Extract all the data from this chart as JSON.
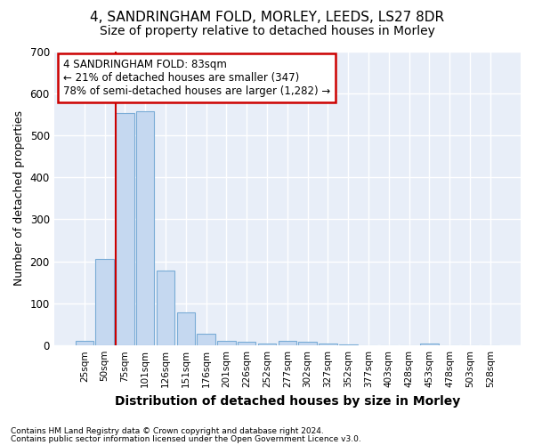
{
  "title": "4, SANDRINGHAM FOLD, MORLEY, LEEDS, LS27 8DR",
  "subtitle": "Size of property relative to detached houses in Morley",
  "xlabel": "Distribution of detached houses by size in Morley",
  "ylabel": "Number of detached properties",
  "categories": [
    "25sqm",
    "50sqm",
    "75sqm",
    "101sqm",
    "126sqm",
    "151sqm",
    "176sqm",
    "201sqm",
    "226sqm",
    "252sqm",
    "277sqm",
    "302sqm",
    "327sqm",
    "352sqm",
    "377sqm",
    "403sqm",
    "428sqm",
    "453sqm",
    "478sqm",
    "503sqm",
    "528sqm"
  ],
  "values": [
    10,
    205,
    553,
    557,
    178,
    78,
    28,
    10,
    8,
    5,
    10,
    8,
    5,
    3,
    0,
    0,
    0,
    5,
    0,
    0,
    0
  ],
  "bar_color": "#c5d8f0",
  "bar_edgecolor": "#7aacd6",
  "annotation_text": "4 SANDRINGHAM FOLD: 83sqm\n← 21% of detached houses are smaller (347)\n78% of semi-detached houses are larger (1,282) →",
  "annotation_box_color": "#ffffff",
  "annotation_box_edgecolor": "#cc0000",
  "red_line_color": "#cc0000",
  "ylim": [
    0,
    700
  ],
  "yticks": [
    0,
    100,
    200,
    300,
    400,
    500,
    600,
    700
  ],
  "footer1": "Contains HM Land Registry data © Crown copyright and database right 2024.",
  "footer2": "Contains public sector information licensed under the Open Government Licence v3.0.",
  "bg_color": "#ffffff",
  "plot_bg_color": "#e8eef8",
  "grid_color": "#ffffff",
  "title_fontsize": 11,
  "subtitle_fontsize": 10,
  "xlabel_fontsize": 10,
  "ylabel_fontsize": 9
}
